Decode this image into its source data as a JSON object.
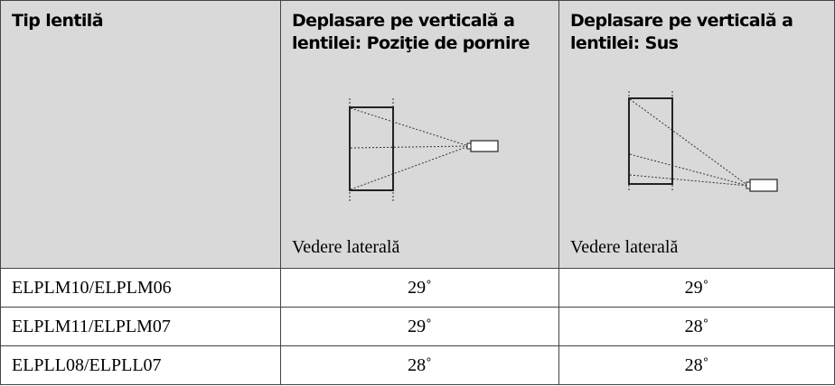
{
  "table": {
    "header": [
      {
        "title": "Tip lentilă"
      },
      {
        "title": "Deplasare pe verticală a lentilei: Poziţie de pornire",
        "caption": "Vedere laterală"
      },
      {
        "title": "Deplasare pe verticală a lentilei: Sus",
        "caption": "Vedere laterală"
      }
    ],
    "rows": [
      [
        "ELPLM10/ELPLM06",
        "29˚",
        "29˚"
      ],
      [
        "ELPLM11/ELPLM07",
        "29˚",
        "28˚"
      ],
      [
        "ELPLL08/ELPLL07",
        "28˚",
        "28˚"
      ]
    ]
  }
}
